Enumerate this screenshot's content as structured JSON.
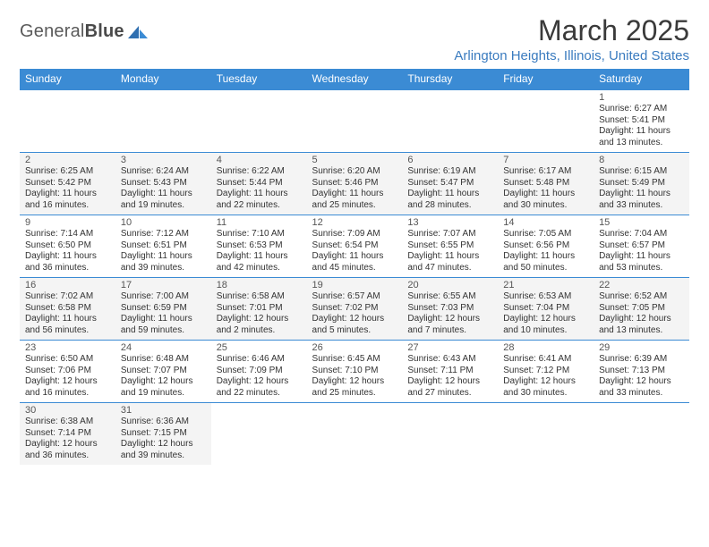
{
  "brand": {
    "part1": "General",
    "part2": "Blue"
  },
  "title": "March 2025",
  "location": "Arlington Heights, Illinois, United States",
  "colors": {
    "header_bg": "#3b8bd4",
    "header_text": "#ffffff",
    "border": "#3b8bd4",
    "location_text": "#3a7bbf",
    "body_text": "#333333",
    "shade_bg": "#f4f4f4"
  },
  "typography": {
    "title_fontsize": 32,
    "location_fontsize": 15,
    "dayhead_fontsize": 12,
    "cell_fontsize": 10
  },
  "day_headers": [
    "Sunday",
    "Monday",
    "Tuesday",
    "Wednesday",
    "Thursday",
    "Friday",
    "Saturday"
  ],
  "weeks": [
    [
      null,
      null,
      null,
      null,
      null,
      null,
      {
        "n": "1",
        "sr": "Sunrise: 6:27 AM",
        "ss": "Sunset: 5:41 PM",
        "dl": "Daylight: 11 hours and 13 minutes."
      }
    ],
    [
      {
        "n": "2",
        "sr": "Sunrise: 6:25 AM",
        "ss": "Sunset: 5:42 PM",
        "dl": "Daylight: 11 hours and 16 minutes."
      },
      {
        "n": "3",
        "sr": "Sunrise: 6:24 AM",
        "ss": "Sunset: 5:43 PM",
        "dl": "Daylight: 11 hours and 19 minutes."
      },
      {
        "n": "4",
        "sr": "Sunrise: 6:22 AM",
        "ss": "Sunset: 5:44 PM",
        "dl": "Daylight: 11 hours and 22 minutes."
      },
      {
        "n": "5",
        "sr": "Sunrise: 6:20 AM",
        "ss": "Sunset: 5:46 PM",
        "dl": "Daylight: 11 hours and 25 minutes."
      },
      {
        "n": "6",
        "sr": "Sunrise: 6:19 AM",
        "ss": "Sunset: 5:47 PM",
        "dl": "Daylight: 11 hours and 28 minutes."
      },
      {
        "n": "7",
        "sr": "Sunrise: 6:17 AM",
        "ss": "Sunset: 5:48 PM",
        "dl": "Daylight: 11 hours and 30 minutes."
      },
      {
        "n": "8",
        "sr": "Sunrise: 6:15 AM",
        "ss": "Sunset: 5:49 PM",
        "dl": "Daylight: 11 hours and 33 minutes."
      }
    ],
    [
      {
        "n": "9",
        "sr": "Sunrise: 7:14 AM",
        "ss": "Sunset: 6:50 PM",
        "dl": "Daylight: 11 hours and 36 minutes."
      },
      {
        "n": "10",
        "sr": "Sunrise: 7:12 AM",
        "ss": "Sunset: 6:51 PM",
        "dl": "Daylight: 11 hours and 39 minutes."
      },
      {
        "n": "11",
        "sr": "Sunrise: 7:10 AM",
        "ss": "Sunset: 6:53 PM",
        "dl": "Daylight: 11 hours and 42 minutes."
      },
      {
        "n": "12",
        "sr": "Sunrise: 7:09 AM",
        "ss": "Sunset: 6:54 PM",
        "dl": "Daylight: 11 hours and 45 minutes."
      },
      {
        "n": "13",
        "sr": "Sunrise: 7:07 AM",
        "ss": "Sunset: 6:55 PM",
        "dl": "Daylight: 11 hours and 47 minutes."
      },
      {
        "n": "14",
        "sr": "Sunrise: 7:05 AM",
        "ss": "Sunset: 6:56 PM",
        "dl": "Daylight: 11 hours and 50 minutes."
      },
      {
        "n": "15",
        "sr": "Sunrise: 7:04 AM",
        "ss": "Sunset: 6:57 PM",
        "dl": "Daylight: 11 hours and 53 minutes."
      }
    ],
    [
      {
        "n": "16",
        "sr": "Sunrise: 7:02 AM",
        "ss": "Sunset: 6:58 PM",
        "dl": "Daylight: 11 hours and 56 minutes."
      },
      {
        "n": "17",
        "sr": "Sunrise: 7:00 AM",
        "ss": "Sunset: 6:59 PM",
        "dl": "Daylight: 11 hours and 59 minutes."
      },
      {
        "n": "18",
        "sr": "Sunrise: 6:58 AM",
        "ss": "Sunset: 7:01 PM",
        "dl": "Daylight: 12 hours and 2 minutes."
      },
      {
        "n": "19",
        "sr": "Sunrise: 6:57 AM",
        "ss": "Sunset: 7:02 PM",
        "dl": "Daylight: 12 hours and 5 minutes."
      },
      {
        "n": "20",
        "sr": "Sunrise: 6:55 AM",
        "ss": "Sunset: 7:03 PM",
        "dl": "Daylight: 12 hours and 7 minutes."
      },
      {
        "n": "21",
        "sr": "Sunrise: 6:53 AM",
        "ss": "Sunset: 7:04 PM",
        "dl": "Daylight: 12 hours and 10 minutes."
      },
      {
        "n": "22",
        "sr": "Sunrise: 6:52 AM",
        "ss": "Sunset: 7:05 PM",
        "dl": "Daylight: 12 hours and 13 minutes."
      }
    ],
    [
      {
        "n": "23",
        "sr": "Sunrise: 6:50 AM",
        "ss": "Sunset: 7:06 PM",
        "dl": "Daylight: 12 hours and 16 minutes."
      },
      {
        "n": "24",
        "sr": "Sunrise: 6:48 AM",
        "ss": "Sunset: 7:07 PM",
        "dl": "Daylight: 12 hours and 19 minutes."
      },
      {
        "n": "25",
        "sr": "Sunrise: 6:46 AM",
        "ss": "Sunset: 7:09 PM",
        "dl": "Daylight: 12 hours and 22 minutes."
      },
      {
        "n": "26",
        "sr": "Sunrise: 6:45 AM",
        "ss": "Sunset: 7:10 PM",
        "dl": "Daylight: 12 hours and 25 minutes."
      },
      {
        "n": "27",
        "sr": "Sunrise: 6:43 AM",
        "ss": "Sunset: 7:11 PM",
        "dl": "Daylight: 12 hours and 27 minutes."
      },
      {
        "n": "28",
        "sr": "Sunrise: 6:41 AM",
        "ss": "Sunset: 7:12 PM",
        "dl": "Daylight: 12 hours and 30 minutes."
      },
      {
        "n": "29",
        "sr": "Sunrise: 6:39 AM",
        "ss": "Sunset: 7:13 PM",
        "dl": "Daylight: 12 hours and 33 minutes."
      }
    ],
    [
      {
        "n": "30",
        "sr": "Sunrise: 6:38 AM",
        "ss": "Sunset: 7:14 PM",
        "dl": "Daylight: 12 hours and 36 minutes."
      },
      {
        "n": "31",
        "sr": "Sunrise: 6:36 AM",
        "ss": "Sunset: 7:15 PM",
        "dl": "Daylight: 12 hours and 39 minutes."
      },
      null,
      null,
      null,
      null,
      null
    ]
  ]
}
